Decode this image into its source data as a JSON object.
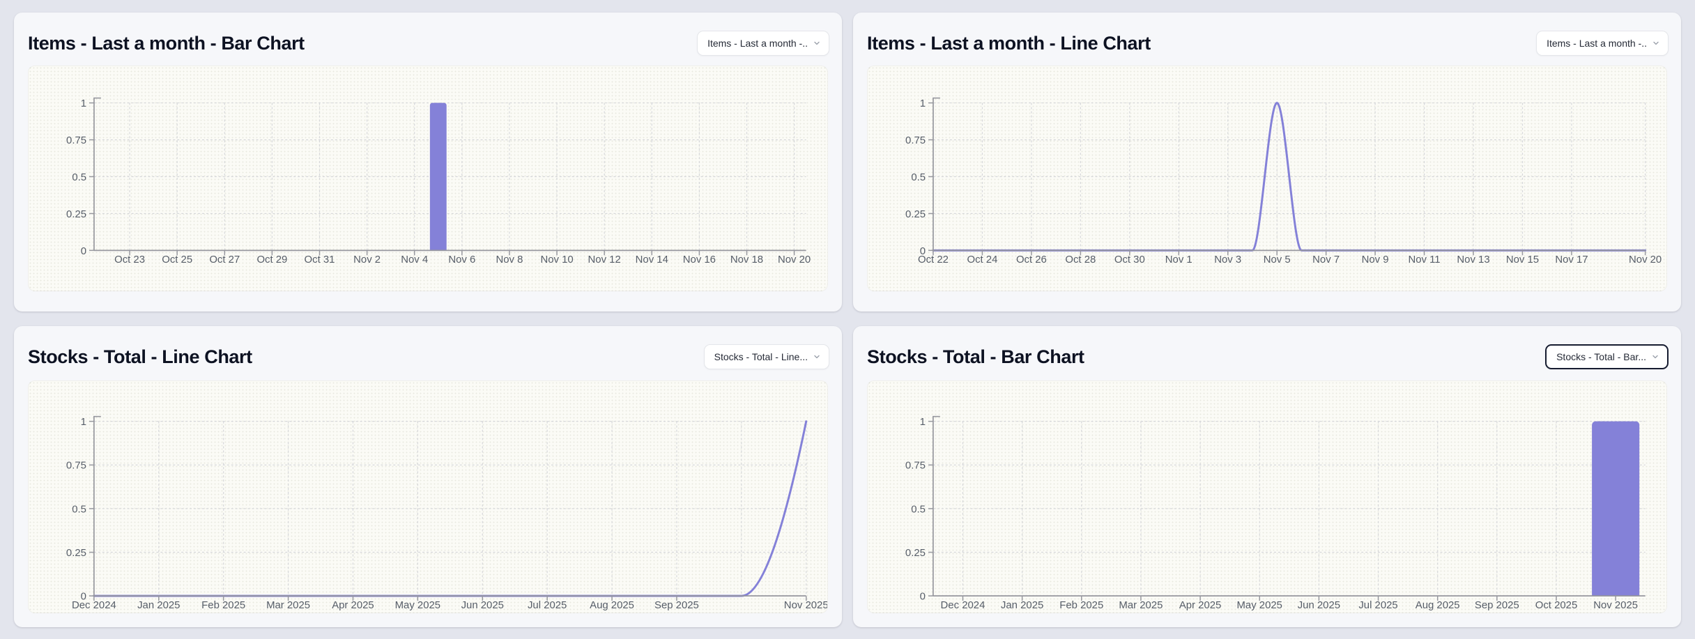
{
  "page": {
    "background_color": "#e3e5ed"
  },
  "colors": {
    "accent_purple": "#8481d8",
    "axis_line": "#97989f",
    "gridline": "#d6d7da",
    "tick_text": "#565d68",
    "title_text": "#0d1222",
    "card_background": "#f6f7fa",
    "panel_background": "#fbfbf6",
    "selector_focused_border": "#161c30"
  },
  "cards": [
    {
      "title": "Items - Last a month - Bar Chart",
      "selector_label": "Items - Last a month -..",
      "selector_focused": false
    },
    {
      "title": "Items - Last a month - Line Chart",
      "selector_label": "Items - Last a month -..",
      "selector_focused": false
    },
    {
      "title": "Stocks - Total - Line Chart",
      "selector_label": "Stocks - Total - Line...",
      "selector_focused": false
    },
    {
      "title": "Stocks - Total - Bar Chart",
      "selector_label": "Stocks - Total - Bar...",
      "selector_focused": true
    }
  ],
  "chart_data": [
    {
      "type": "bar",
      "title": "Items - Last a month - Bar Chart",
      "scale": "band",
      "x_axis_note": "daily values, Oct 22 - Nov 20",
      "n_points": 30,
      "x_ticks": [
        [
          "Oct 23",
          1
        ],
        [
          "Oct 25",
          3
        ],
        [
          "Oct 27",
          5
        ],
        [
          "Oct 29",
          7
        ],
        [
          "Oct 31",
          9
        ],
        [
          "Nov 2",
          11
        ],
        [
          "Nov 4",
          13
        ],
        [
          "Nov 6",
          15
        ],
        [
          "Nov 8",
          17
        ],
        [
          "Nov 10",
          19
        ],
        [
          "Nov 12",
          21
        ],
        [
          "Nov 14",
          23
        ],
        [
          "Nov 16",
          25
        ],
        [
          "Nov 18",
          27
        ],
        [
          "Nov 20",
          29
        ]
      ],
      "y_ticks": [
        "0",
        "0.25",
        "0.5",
        "0.75",
        "1"
      ],
      "ylim": [
        0,
        1
      ],
      "values": [
        0,
        0,
        0,
        0,
        0,
        0,
        0,
        0,
        0,
        0,
        0,
        0,
        0,
        0,
        1,
        0,
        0,
        0,
        0,
        0,
        0,
        0,
        0,
        0,
        0,
        0,
        0,
        0,
        0,
        0
      ],
      "nonzero_points": [
        {
          "x": "Nov 5",
          "index": 14,
          "y": 1
        }
      ],
      "bar_width_frac": 0.7,
      "bar_radius": 4,
      "grid": "dashed",
      "legend": false
    },
    {
      "type": "line",
      "title": "Items - Last a month - Line Chart",
      "scale": "point",
      "x_axis_note": "daily values, Oct 22 - Nov 20",
      "n_points": 30,
      "x_ticks": [
        [
          "Oct 22",
          0
        ],
        [
          "Oct 24",
          2
        ],
        [
          "Oct 26",
          4
        ],
        [
          "Oct 28",
          6
        ],
        [
          "Oct 30",
          8
        ],
        [
          "Nov 1",
          10
        ],
        [
          "Nov 3",
          12
        ],
        [
          "Nov 5",
          14
        ],
        [
          "Nov 7",
          16
        ],
        [
          "Nov 9",
          18
        ],
        [
          "Nov 11",
          20
        ],
        [
          "Nov 13",
          22
        ],
        [
          "Nov 15",
          24
        ],
        [
          "Nov 17",
          26
        ],
        [
          "Nov 20",
          29
        ]
      ],
      "y_ticks": [
        "0",
        "0.25",
        "0.5",
        "0.75",
        "1"
      ],
      "ylim": [
        0,
        1
      ],
      "values": [
        0,
        0,
        0,
        0,
        0,
        0,
        0,
        0,
        0,
        0,
        0,
        0,
        0,
        0,
        1,
        0,
        0,
        0,
        0,
        0,
        0,
        0,
        0,
        0,
        0,
        0,
        0,
        0,
        0,
        0
      ],
      "nonzero_points": [
        {
          "x": "Nov 5",
          "index": 14,
          "y": 1
        }
      ],
      "line_shape": "smooth",
      "grid": "dashed",
      "legend": false
    },
    {
      "type": "line",
      "title": "Stocks - Total - Line Chart",
      "scale": "point",
      "x_axis_note": "monthly values, Dec 2024 - Nov 2025",
      "n_points": 12,
      "x_ticks": [
        [
          "Dec 2024",
          0
        ],
        [
          "Jan 2025",
          1
        ],
        [
          "Feb 2025",
          2
        ],
        [
          "Mar 2025",
          3
        ],
        [
          "Apr 2025",
          4
        ],
        [
          "May 2025",
          5
        ],
        [
          "Jun 2025",
          6
        ],
        [
          "Jul 2025",
          7
        ],
        [
          "Aug 2025",
          8
        ],
        [
          "Sep 2025",
          9
        ],
        [
          "Nov 2025",
          11
        ]
      ],
      "extra_gridline_indices": [
        10
      ],
      "y_ticks": [
        "0",
        "0.25",
        "0.5",
        "0.75",
        "1"
      ],
      "ylim": [
        0,
        1
      ],
      "values": [
        0,
        0,
        0,
        0,
        0,
        0,
        0,
        0,
        0,
        0,
        0,
        1
      ],
      "nonzero_points": [
        {
          "x": "Nov 2025",
          "index": 11,
          "y": 1
        }
      ],
      "line_shape": "smooth",
      "grid": "dashed",
      "legend": false
    },
    {
      "type": "bar",
      "title": "Stocks - Total - Bar Chart",
      "scale": "band",
      "x_axis_note": "monthly values, Dec 2024 - Nov 2025",
      "n_points": 12,
      "x_ticks": [
        [
          "Dec 2024",
          0
        ],
        [
          "Jan 2025",
          1
        ],
        [
          "Feb 2025",
          2
        ],
        [
          "Mar 2025",
          3
        ],
        [
          "Apr 2025",
          4
        ],
        [
          "May 2025",
          5
        ],
        [
          "Jun 2025",
          6
        ],
        [
          "Jul 2025",
          7
        ],
        [
          "Aug 2025",
          8
        ],
        [
          "Sep 2025",
          9
        ],
        [
          "Oct 2025",
          10
        ],
        [
          "Nov 2025",
          11
        ]
      ],
      "y_ticks": [
        "0",
        "0.25",
        "0.5",
        "0.75",
        "1"
      ],
      "ylim": [
        0,
        1
      ],
      "values": [
        0,
        0,
        0,
        0,
        0,
        0,
        0,
        0,
        0,
        0,
        0,
        1
      ],
      "nonzero_points": [
        {
          "x": "Nov 2025",
          "index": 11,
          "y": 1
        }
      ],
      "bar_width_frac": 0.8,
      "bar_radius": 6,
      "grid": "dashed",
      "legend": false
    }
  ]
}
